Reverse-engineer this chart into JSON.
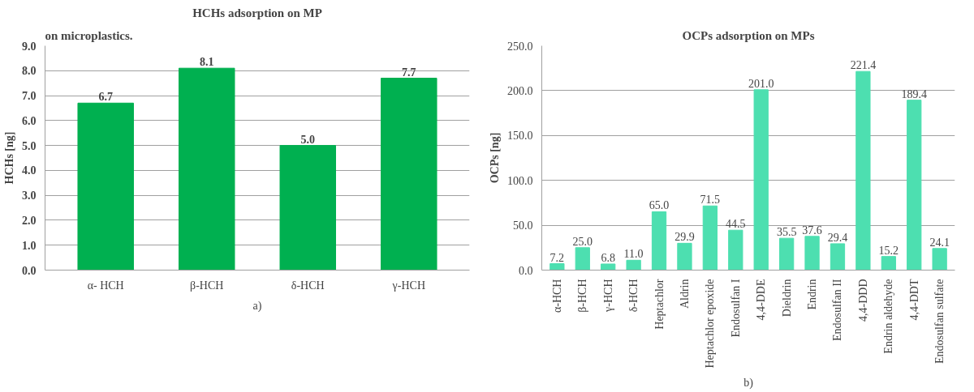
{
  "chart_data": [
    {
      "type": "bar",
      "title": "HCHs adsorption on MP",
      "ylabel": "HCHs [ng]",
      "categories": [
        "α- HCH",
        "β-HCH",
        "δ-HCH",
        "γ-HCH"
      ],
      "values": [
        6.7,
        8.1,
        5.0,
        7.7
      ],
      "value_labels": [
        "6.7",
        "8.1",
        "5.0",
        "7.7"
      ],
      "color": "#00b050",
      "ylim": [
        0,
        9.0
      ],
      "yticks": [
        {
          "value": 0,
          "label": "0.0"
        },
        {
          "value": 1,
          "label": "1.0"
        },
        {
          "value": 2,
          "label": "2.0"
        },
        {
          "value": 3,
          "label": "3.0"
        },
        {
          "value": 4,
          "label": "4.0"
        },
        {
          "value": 5,
          "label": "5.0"
        },
        {
          "value": 6,
          "label": "6.0"
        },
        {
          "value": 7,
          "label": "7.0"
        },
        {
          "value": 8,
          "label": "8.0"
        },
        {
          "value": 9,
          "label": "9.0"
        }
      ],
      "grid": "y",
      "annotations": [
        "on microplastics.",
        "a)"
      ]
    },
    {
      "type": "bar",
      "title": "OCPs adsorption on MPs",
      "ylabel": "OCPs [ng]",
      "categories": [
        "α-HCH",
        "β-HCH",
        "γ-HCH",
        "δ-HCH",
        "Heptachlor",
        "Aldrin",
        "Heptachlor epoxide",
        "Endosulfan I",
        "4,4-DDE",
        "Dieldrin",
        "Endrin",
        "Endosulfan II",
        "4,4-DDD",
        "Endrin aldehyde",
        "4,4-DDT",
        "Endosulfan sulfate"
      ],
      "values": [
        7.2,
        25.0,
        6.8,
        11.0,
        65.0,
        29.9,
        71.5,
        44.5,
        201.0,
        35.5,
        37.6,
        29.4,
        221.4,
        15.2,
        189.4,
        24.1
      ],
      "value_labels": [
        "7.2",
        "25.0",
        "6.8",
        "11.0",
        "65.0",
        "29.9",
        "71.5",
        "44.5",
        "201.0",
        "35.5",
        "37.6",
        "29.4",
        "221.4",
        "15.2",
        "189.4",
        "24.1"
      ],
      "color": "#4ddfb0",
      "ylim": [
        0,
        250.0
      ],
      "yticks": [
        {
          "value": 0,
          "label": "0.0"
        },
        {
          "value": 50,
          "label": "50.0"
        },
        {
          "value": 100,
          "label": "100.0"
        },
        {
          "value": 150,
          "label": "150.0"
        },
        {
          "value": 200,
          "label": "200.0"
        },
        {
          "value": 250,
          "label": "250.0"
        }
      ],
      "grid": "y",
      "annotations": [
        "b)"
      ]
    }
  ]
}
